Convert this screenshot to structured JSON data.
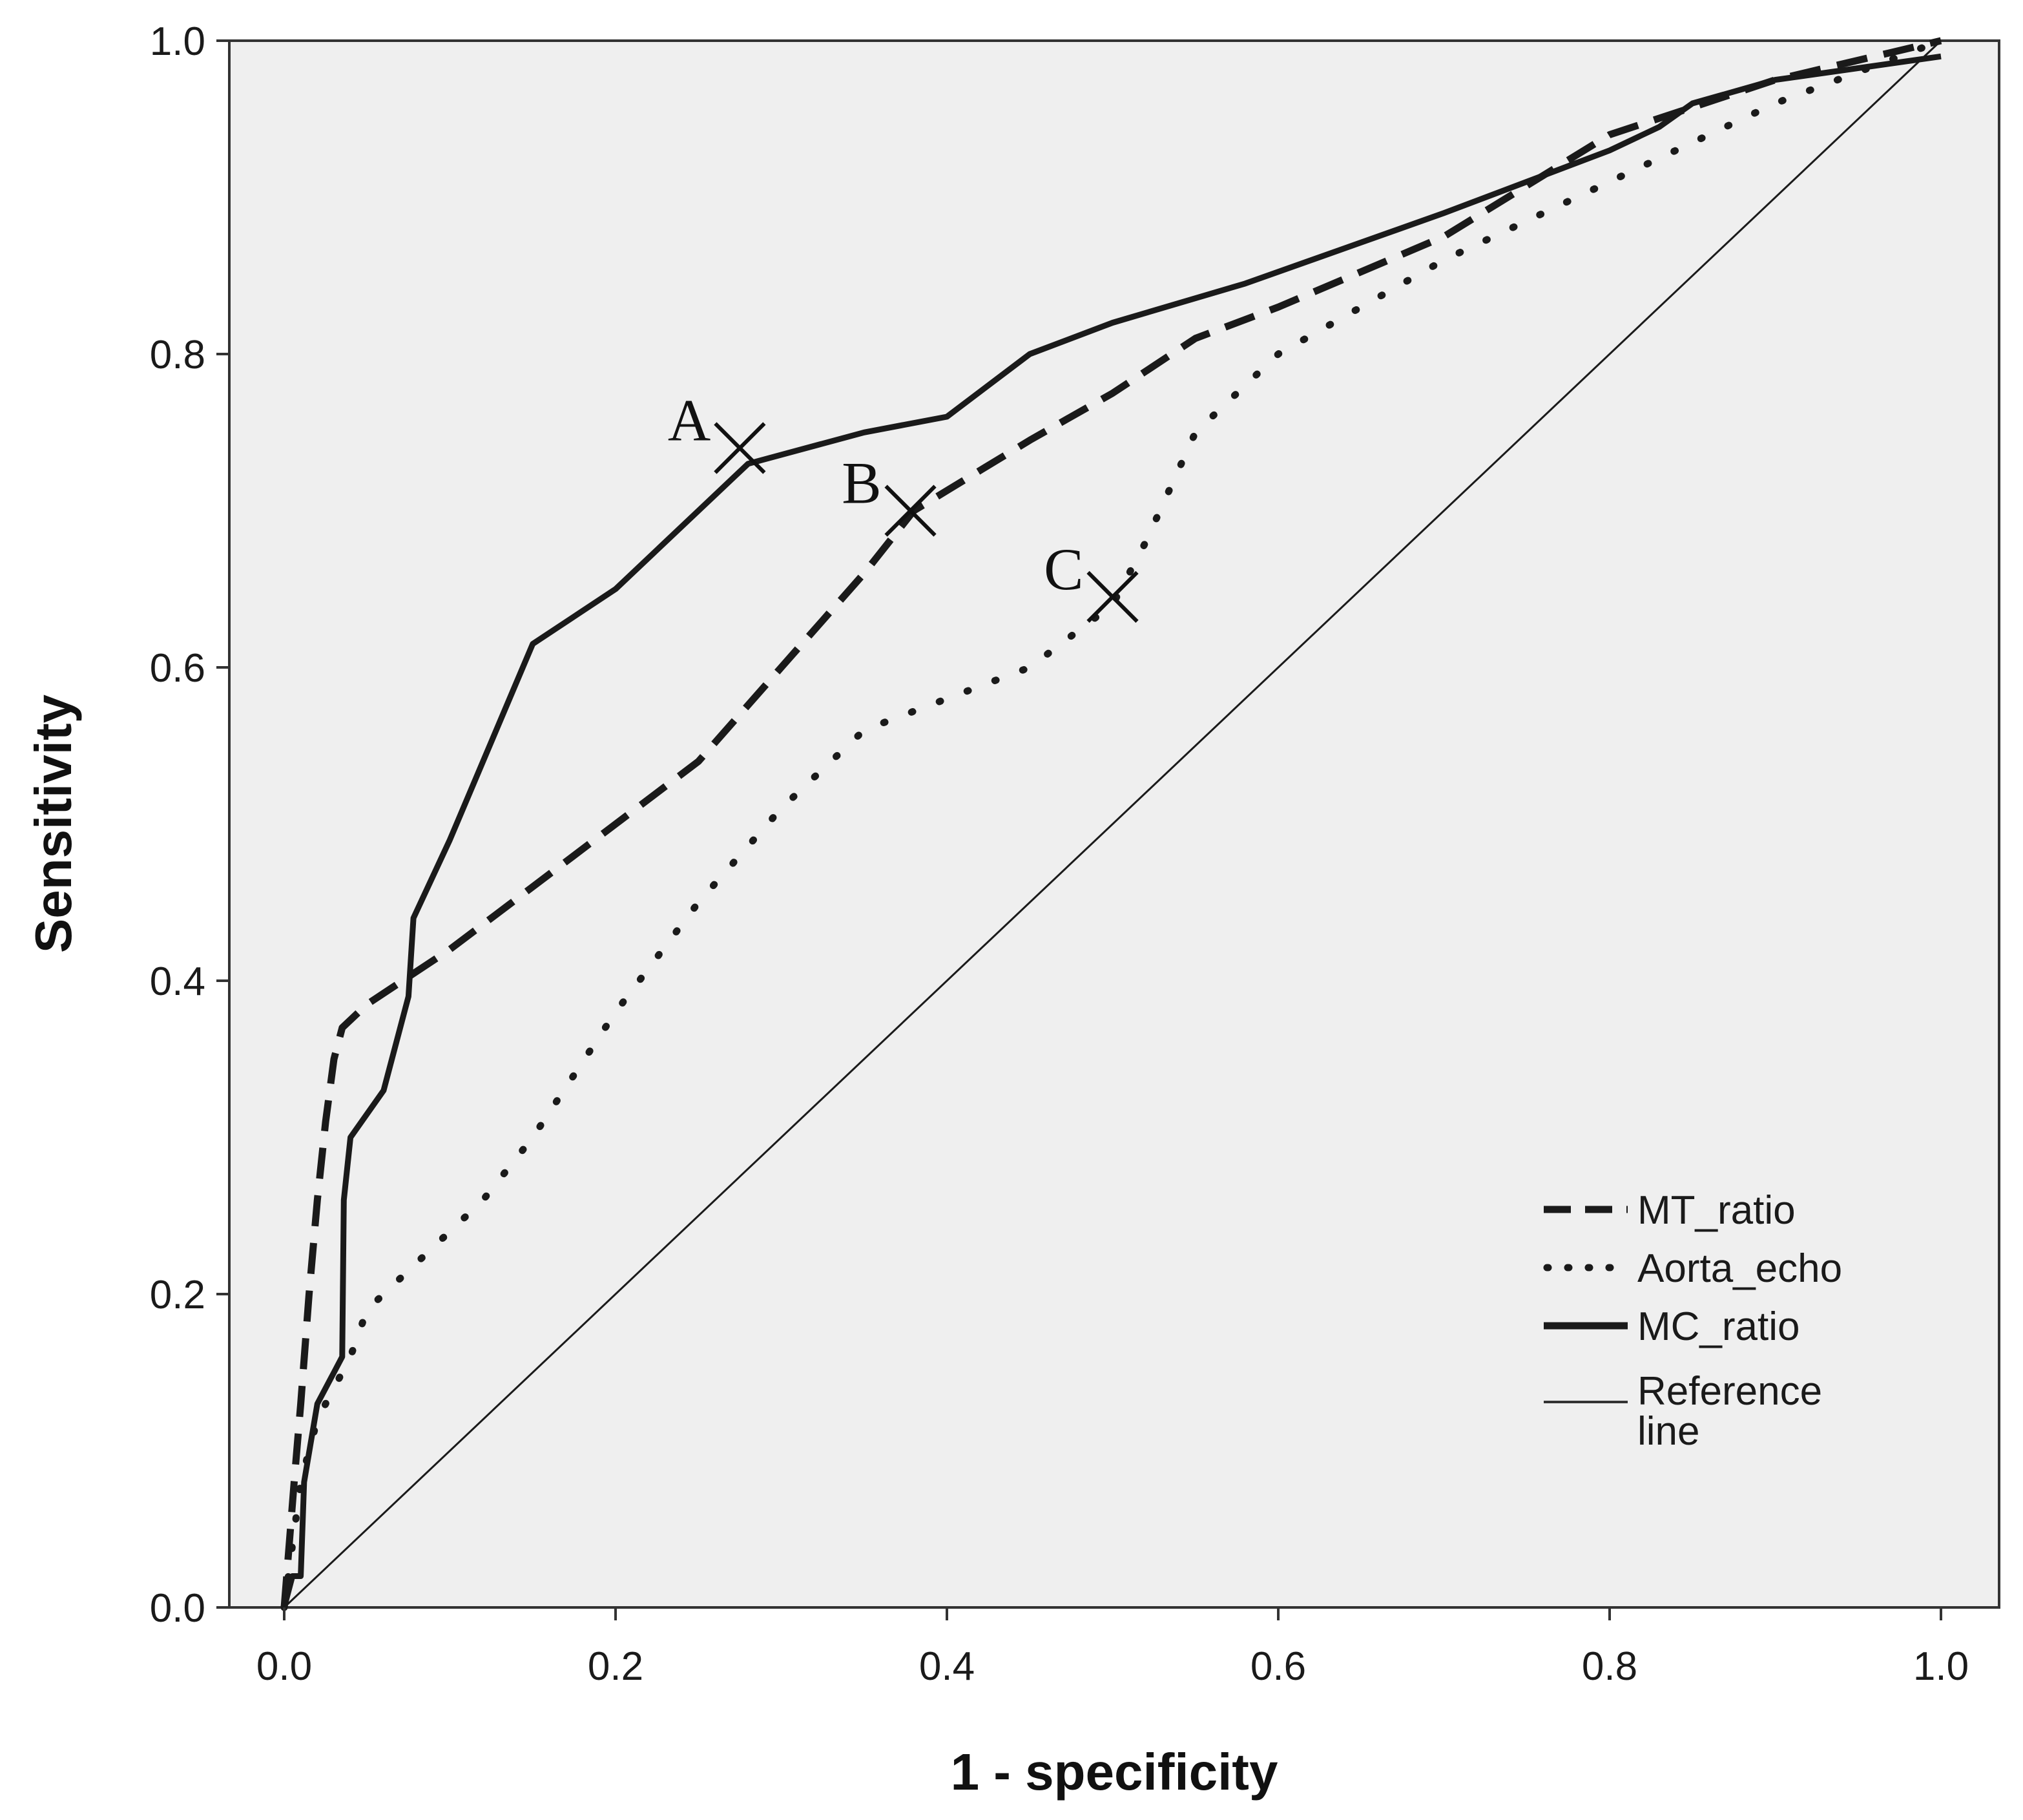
{
  "chart_data": {
    "type": "line",
    "title": "",
    "xlabel": "1 - specificity",
    "ylabel": "Sensitivity",
    "xlim": [
      0,
      1
    ],
    "ylim": [
      0,
      1
    ],
    "xticks": [
      "0.0",
      "0.2",
      "0.4",
      "0.6",
      "0.8",
      "1.0"
    ],
    "yticks": [
      "0.0",
      "0.2",
      "0.4",
      "0.6",
      "0.8",
      "1.0"
    ],
    "grid": false,
    "legend_position": "bottom-right",
    "colors": {
      "plot_background": "#efefef",
      "line": "#1a1a1a",
      "axes": "#333333"
    },
    "series": [
      {
        "name": "MT_ratio",
        "style": "dashed",
        "points": [
          [
            0,
            0
          ],
          [
            0.003,
            0.04
          ],
          [
            0.006,
            0.08
          ],
          [
            0.01,
            0.13
          ],
          [
            0.015,
            0.2
          ],
          [
            0.02,
            0.26
          ],
          [
            0.025,
            0.31
          ],
          [
            0.03,
            0.35
          ],
          [
            0.035,
            0.37
          ],
          [
            0.05,
            0.385
          ],
          [
            0.1,
            0.42
          ],
          [
            0.15,
            0.46
          ],
          [
            0.2,
            0.5
          ],
          [
            0.25,
            0.54
          ],
          [
            0.3,
            0.6
          ],
          [
            0.35,
            0.66
          ],
          [
            0.38,
            0.7
          ],
          [
            0.45,
            0.745
          ],
          [
            0.5,
            0.775
          ],
          [
            0.55,
            0.81
          ],
          [
            0.6,
            0.83
          ],
          [
            0.7,
            0.875
          ],
          [
            0.8,
            0.94
          ],
          [
            0.9,
            0.975
          ],
          [
            1.0,
            1.0
          ]
        ]
      },
      {
        "name": "Aorta_echo",
        "style": "dotted",
        "points": [
          [
            0,
            0
          ],
          [
            0.005,
            0.04
          ],
          [
            0.01,
            0.08
          ],
          [
            0.02,
            0.12
          ],
          [
            0.03,
            0.14
          ],
          [
            0.04,
            0.16
          ],
          [
            0.05,
            0.19
          ],
          [
            0.08,
            0.22
          ],
          [
            0.12,
            0.26
          ],
          [
            0.15,
            0.3
          ],
          [
            0.2,
            0.38
          ],
          [
            0.25,
            0.45
          ],
          [
            0.3,
            0.51
          ],
          [
            0.35,
            0.56
          ],
          [
            0.4,
            0.58
          ],
          [
            0.45,
            0.6
          ],
          [
            0.5,
            0.64
          ],
          [
            0.52,
            0.68
          ],
          [
            0.55,
            0.75
          ],
          [
            0.6,
            0.8
          ],
          [
            0.7,
            0.86
          ],
          [
            0.8,
            0.91
          ],
          [
            0.9,
            0.96
          ],
          [
            1.0,
            1.0
          ]
        ]
      },
      {
        "name": "MC_ratio",
        "style": "solid",
        "points": [
          [
            0,
            0
          ],
          [
            0.005,
            0.02
          ],
          [
            0.01,
            0.02
          ],
          [
            0.012,
            0.08
          ],
          [
            0.02,
            0.13
          ],
          [
            0.03,
            0.15
          ],
          [
            0.035,
            0.16
          ],
          [
            0.036,
            0.26
          ],
          [
            0.04,
            0.3
          ],
          [
            0.06,
            0.33
          ],
          [
            0.075,
            0.39
          ],
          [
            0.078,
            0.44
          ],
          [
            0.1,
            0.49
          ],
          [
            0.12,
            0.54
          ],
          [
            0.15,
            0.615
          ],
          [
            0.2,
            0.65
          ],
          [
            0.25,
            0.7
          ],
          [
            0.28,
            0.73
          ],
          [
            0.35,
            0.75
          ],
          [
            0.4,
            0.76
          ],
          [
            0.45,
            0.8
          ],
          [
            0.5,
            0.82
          ],
          [
            0.58,
            0.845
          ],
          [
            0.7,
            0.89
          ],
          [
            0.8,
            0.93
          ],
          [
            0.83,
            0.945
          ],
          [
            0.85,
            0.96
          ],
          [
            0.9,
            0.975
          ],
          [
            1.0,
            0.99
          ]
        ]
      },
      {
        "name": "Reference line",
        "style": "thin",
        "points": [
          [
            0,
            0
          ],
          [
            1,
            1
          ]
        ]
      }
    ],
    "annotations": [
      {
        "label": "A",
        "x": 0.275,
        "y": 0.74
      },
      {
        "label": "B",
        "x": 0.378,
        "y": 0.7
      },
      {
        "label": "C",
        "x": 0.5,
        "y": 0.645
      }
    ]
  }
}
